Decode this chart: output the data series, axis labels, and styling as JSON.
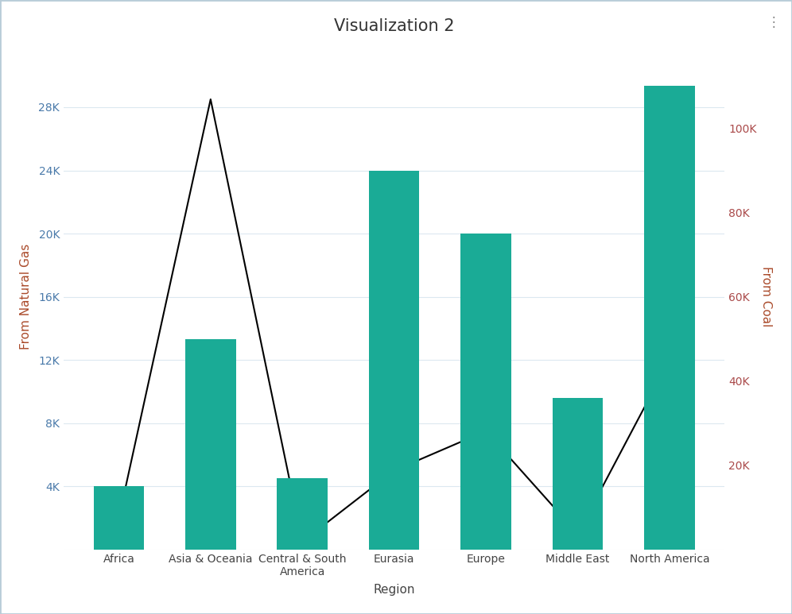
{
  "title": "Visualization 2",
  "xlabel": "Region",
  "ylabel_left": "From Natural Gas",
  "ylabel_right": "From Coal",
  "categories": [
    "Africa",
    "Asia & Oceania",
    "Central & South\nAmerica",
    "Eurasia",
    "Europe",
    "Middle East",
    "North America"
  ],
  "bar_values": [
    15000,
    50000,
    17000,
    90000,
    75000,
    36000,
    110000
  ],
  "line_values": [
    2000,
    28500,
    500,
    5000,
    7500,
    1000,
    12000
  ],
  "bar_color": "#1aab96",
  "line_color": "#000000",
  "background_color": "#ffffff",
  "left_ylim": [
    0,
    32000
  ],
  "right_ylim": [
    0,
    120000
  ],
  "left_yticks": [
    0,
    4000,
    8000,
    12000,
    16000,
    20000,
    24000,
    28000
  ],
  "right_yticks": [
    0,
    20000,
    40000,
    60000,
    80000,
    100000
  ],
  "left_tick_labels": [
    "",
    "4K",
    "8K",
    "12K",
    "16K",
    "20K",
    "24K",
    "28K"
  ],
  "right_tick_labels": [
    "",
    "20K",
    "40K",
    "60K",
    "80K",
    "100K"
  ],
  "tick_color_left": "#4a7aaa",
  "tick_color_right": "#aa4a4a",
  "ylabel_color_left": "#aa4a2a",
  "ylabel_color_right": "#aa4a2a",
  "grid_color": "#dce8f0",
  "title_fontsize": 15,
  "label_fontsize": 11,
  "tick_fontsize": 10,
  "border_color": "#b8ccd8",
  "xtick_color": "#444444"
}
